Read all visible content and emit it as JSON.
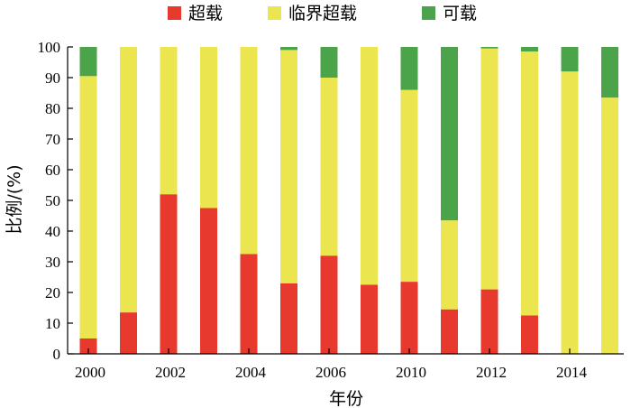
{
  "chart_data": {
    "type": "bar",
    "stacked": true,
    "xlabel": "年份",
    "ylabel": "比例/(%)",
    "ylim": [
      0,
      100
    ],
    "yticks": [
      "0",
      "10",
      "20",
      "30",
      "40",
      "50",
      "60",
      "70",
      "80",
      "90",
      "100"
    ],
    "categories": [
      "2000",
      "2001",
      "2002",
      "2003",
      "2004",
      "2005",
      "2006",
      "2007",
      "2010",
      "2011",
      "2012",
      "2013",
      "2014",
      "2015"
    ],
    "xtick_labels": [
      "2000",
      "",
      "2002",
      "",
      "2004",
      "",
      "2006",
      "",
      "2010",
      "",
      "2012",
      "",
      "2014",
      ""
    ],
    "legend_position": "top",
    "grid": false,
    "series": [
      {
        "name": "超载",
        "color": "#e8392e",
        "values": [
          5,
          13.5,
          52,
          47.5,
          32.5,
          23,
          32,
          22.5,
          23.5,
          14.5,
          21,
          12.5,
          0,
          0
        ]
      },
      {
        "name": "临界超载",
        "color": "#ebe650",
        "values": [
          85.5,
          86.5,
          48,
          52.5,
          67.5,
          76,
          58,
          77.5,
          62.5,
          29,
          78.5,
          86,
          92,
          83.5
        ]
      },
      {
        "name": "可载",
        "color": "#4ba34a",
        "values": [
          9.5,
          0,
          0,
          0,
          0,
          1,
          10,
          0,
          14,
          56.5,
          0.5,
          1.5,
          8,
          16.5
        ]
      }
    ]
  }
}
